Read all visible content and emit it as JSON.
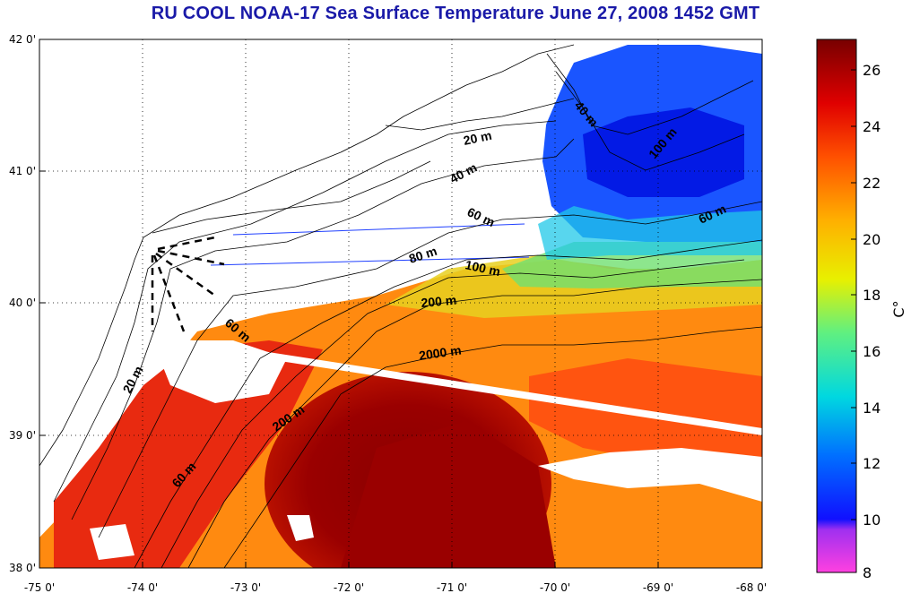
{
  "map": {
    "title": "RU COOL  NOAA-17 Sea Surface Temperature June 27, 2008 1452 GMT",
    "longitude_labels": [
      "-75 0'",
      "-74 0'",
      "-73 0'",
      "-72 0'",
      "-71 0'",
      "-70 0'",
      "-69 0'",
      "-68 0'"
    ],
    "latitude_labels": [
      "42 0'",
      "41 0'",
      "40 0'",
      "39 0'",
      "38 0'"
    ],
    "longitude_range": [
      -75,
      -68
    ],
    "latitude_range": [
      38,
      42
    ],
    "grid": "dotted",
    "contour_labels": [
      "20 m",
      "40 m",
      "60 m",
      "80 m",
      "100 m",
      "200 m",
      "2000 m",
      "20 m",
      "60 m",
      "200 m",
      "60 m",
      "40 m",
      "100 m",
      "60 m"
    ]
  },
  "colorbar": {
    "unit_label": "C°",
    "ticks": [
      "8",
      "10",
      "12",
      "14",
      "16",
      "18",
      "20",
      "22",
      "24",
      "26"
    ],
    "range": [
      8,
      27
    ],
    "colors": [
      "#ff40e0",
      "#8a2be2",
      "#0000ff",
      "#0090ff",
      "#00e0d0",
      "#70f070",
      "#e0f000",
      "#ffc000",
      "#ff7000",
      "#ff1a00",
      "#b00000",
      "#7a0000"
    ]
  }
}
